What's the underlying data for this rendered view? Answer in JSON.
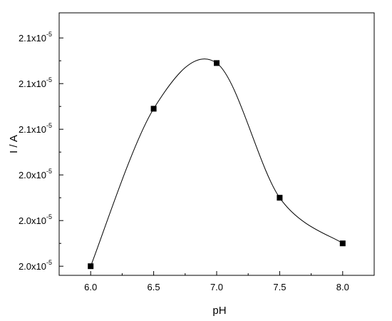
{
  "chart_data": {
    "type": "scatter",
    "xlabel": "pH",
    "ylabel": "I / A",
    "x_ticks": [
      "6.0",
      "6.5",
      "7.0",
      "7.5",
      "8.0"
    ],
    "y_ticks": [
      {
        "mantissa": "2.0x10",
        "exp": "-5"
      },
      {
        "mantissa": "2.0x10",
        "exp": "-5"
      },
      {
        "mantissa": "2.0x10",
        "exp": "-5"
      },
      {
        "mantissa": "2.1x10",
        "exp": "-5"
      },
      {
        "mantissa": "2.1x10",
        "exp": "-5"
      },
      {
        "mantissa": "2.1x10",
        "exp": "-5"
      }
    ],
    "xlim": [
      5.75,
      8.25
    ],
    "ylim": [
      0.8,
      6.55
    ],
    "y_tick_positions": [
      1,
      2,
      3,
      4,
      5,
      6
    ],
    "series": [
      {
        "x": [
          6.0,
          6.5,
          7.0,
          7.5,
          8.0
        ],
        "y": [
          1.0,
          4.45,
          5.45,
          2.5,
          1.5
        ],
        "marker": "square",
        "fit_line": "spline"
      }
    ],
    "marker_color": "#000000",
    "line_color": "#000000",
    "grid": false,
    "legend": "none"
  }
}
